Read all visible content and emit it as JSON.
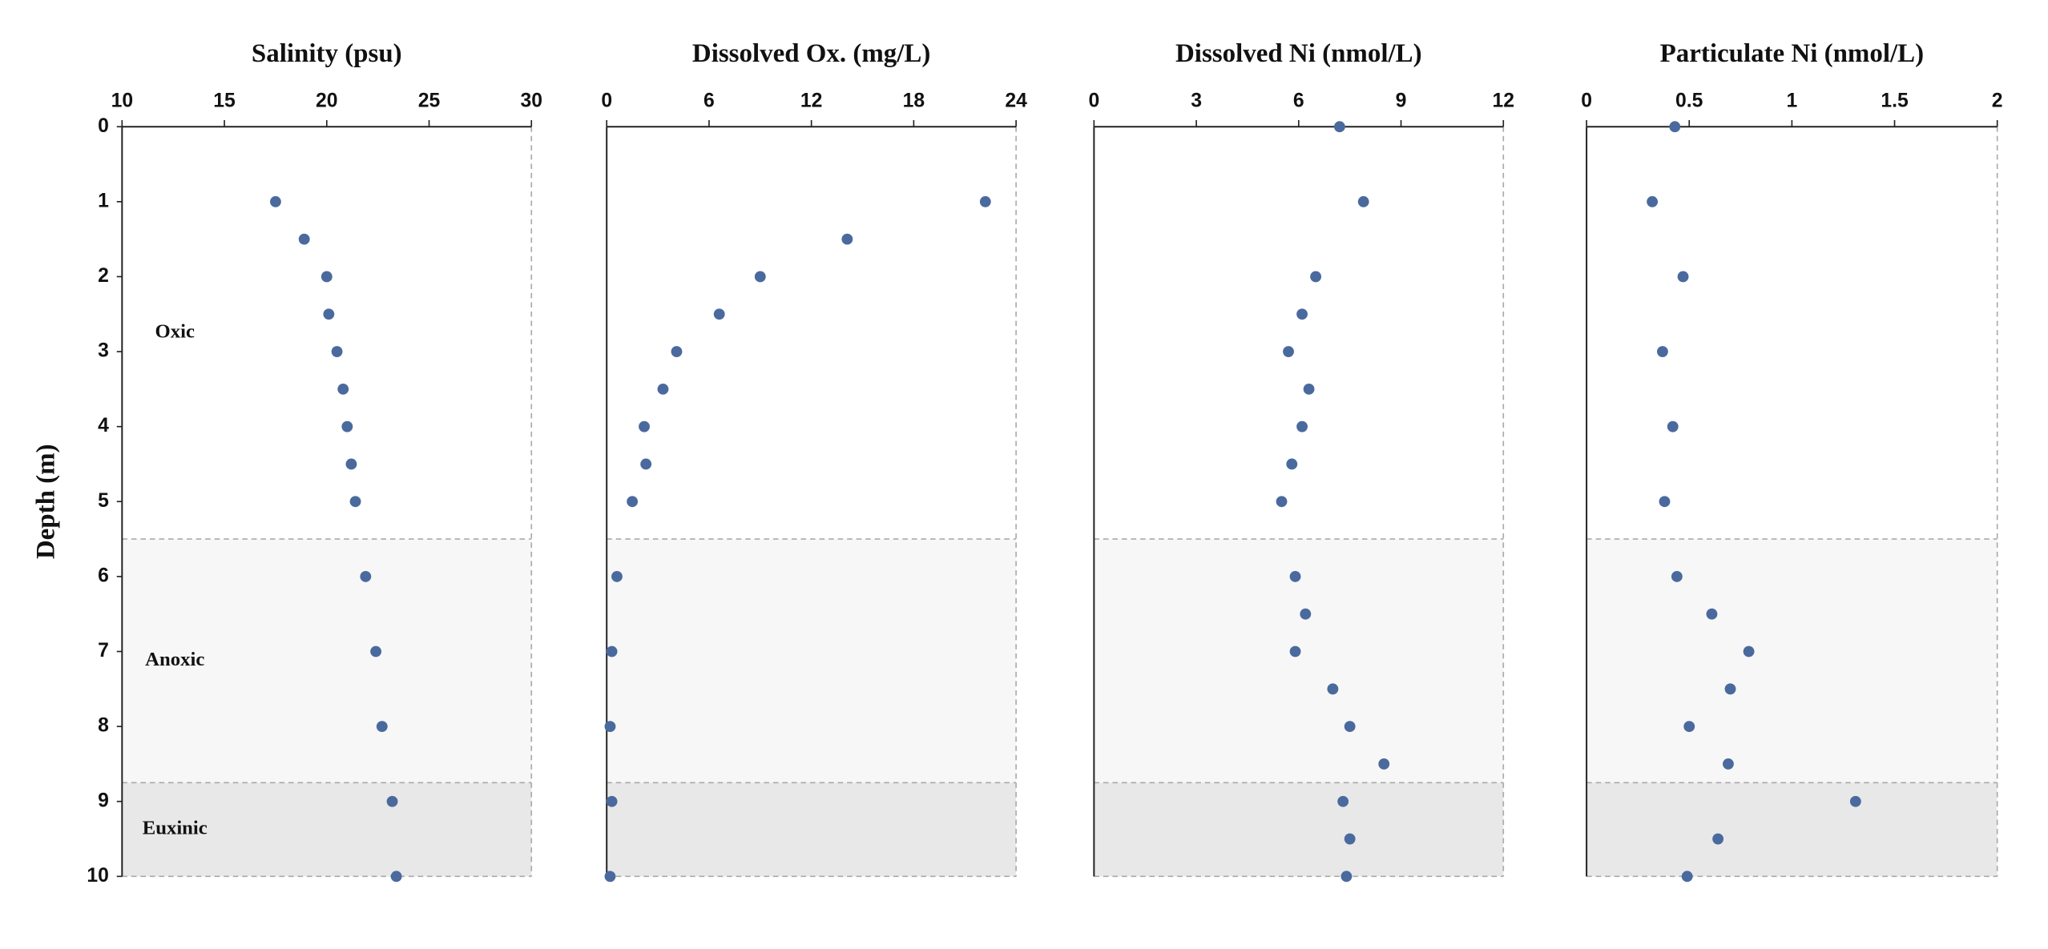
{
  "chart_data": [
    {
      "type": "scatter",
      "title": "Salinity (psu)",
      "ylabel": "Depth (m)",
      "color": "#4a6a9e",
      "xlim": [
        10,
        30
      ],
      "xticks": [
        10,
        15,
        20,
        25,
        30
      ],
      "ylim": [
        0,
        10
      ],
      "yticks": [
        0,
        1,
        2,
        3,
        4,
        5,
        6,
        7,
        8,
        9,
        10
      ],
      "zones": [
        {
          "label": "Oxic",
          "from": 0,
          "to": 5.5,
          "color": "#ffffff"
        },
        {
          "label": "Anoxic",
          "from": 5.5,
          "to": 8.75,
          "color": "#f7f7f7"
        },
        {
          "label": "Euxinic",
          "from": 8.75,
          "to": 10,
          "color": "#e8e8e8"
        }
      ],
      "x": [
        17.5,
        18.9,
        20.0,
        20.1,
        20.5,
        20.8,
        21.0,
        21.2,
        21.4,
        21.9,
        22.4,
        22.7,
        23.2,
        23.4
      ],
      "y": [
        1,
        1.5,
        2,
        2.5,
        3,
        3.5,
        4,
        4.5,
        5,
        6,
        7,
        8,
        9,
        10
      ]
    },
    {
      "type": "scatter",
      "title": "Dissolved Ox. (mg/L)",
      "color": "#4a6a9e",
      "xlim": [
        0,
        24
      ],
      "xticks": [
        0,
        6,
        12,
        18,
        24
      ],
      "ylim": [
        0,
        10
      ],
      "x": [
        22.2,
        14.1,
        9.0,
        6.6,
        4.1,
        3.3,
        2.2,
        2.3,
        1.5,
        0.6,
        0.3,
        0.2,
        0.3,
        0.2
      ],
      "y": [
        1,
        1.5,
        2,
        2.5,
        3,
        3.5,
        4,
        4.5,
        5,
        6,
        7,
        8,
        9,
        10
      ]
    },
    {
      "type": "scatter",
      "title": "Dissolved Ni (nmol/L)",
      "color": "#4a6a9e",
      "xlim": [
        0,
        12
      ],
      "xticks": [
        0,
        3,
        6,
        9,
        12
      ],
      "ylim": [
        0,
        10
      ],
      "x": [
        7.2,
        7.9,
        6.5,
        6.1,
        5.7,
        6.3,
        6.1,
        5.8,
        5.5,
        5.9,
        6.2,
        5.9,
        7.0,
        7.5,
        8.5,
        7.3,
        7.5,
        7.4
      ],
      "y": [
        0,
        1,
        2,
        2.5,
        3,
        3.5,
        4,
        4.5,
        5,
        6,
        6.5,
        7,
        7.5,
        8,
        8.5,
        9,
        9.5,
        10
      ]
    },
    {
      "type": "scatter",
      "title": "Particulate Ni (nmol/L)",
      "color": "#4a6a9e",
      "xlim": [
        0,
        2
      ],
      "xticks": [
        0,
        0.5,
        1,
        1.5,
        2
      ],
      "ylim": [
        0,
        10
      ],
      "x": [
        0.43,
        0.32,
        0.47,
        0.37,
        0.42,
        0.38,
        0.44,
        0.61,
        0.79,
        0.7,
        0.5,
        0.69,
        1.31,
        0.64,
        0.49
      ],
      "y": [
        0,
        1,
        2,
        3,
        4,
        5,
        6,
        6.5,
        7,
        7.5,
        8,
        8.5,
        9,
        9.5,
        10
      ]
    }
  ]
}
